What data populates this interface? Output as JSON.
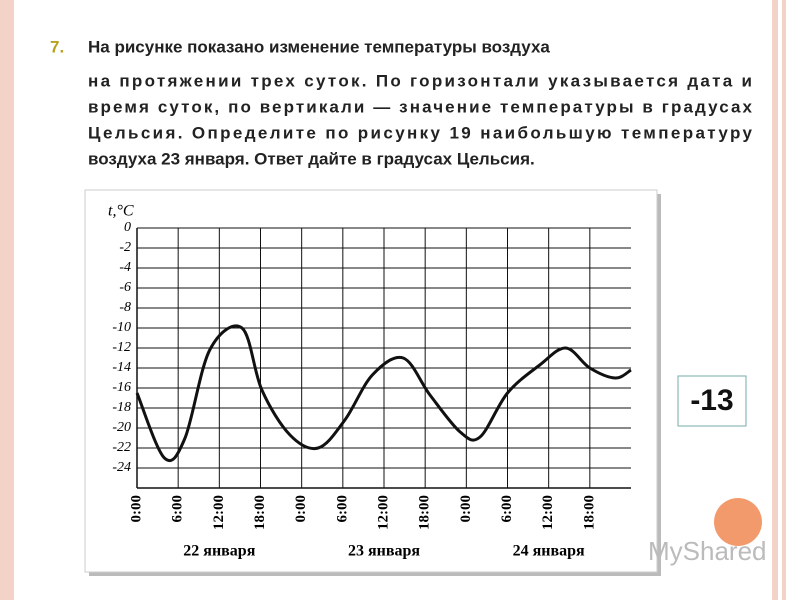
{
  "question": {
    "number": "7.",
    "lines": [
      "На рисунке показано изменение температуры воздуха",
      "на протяжении трех суток. По горизонтали  указывается дата и",
      "время суток, по вертикали — значение  температуры в градусах",
      "Цельсия. Определите по рисунку 19 наибольшую температуру",
      "воздуха 23 января. Ответ дайте в градусах Цельсия."
    ]
  },
  "answer": "-13",
  "watermark": "MyShared",
  "chart_data": {
    "type": "line",
    "y_label": "t,°C",
    "x": [
      0,
      4,
      7,
      10.6,
      15.3,
      18.2,
      22.3,
      26.4,
      30.3,
      34.3,
      38.8,
      42.7,
      47.1,
      50,
      54,
      58.7,
      62.5,
      66,
      69.7,
      72
    ],
    "values": [
      -16.5,
      -23,
      -21,
      -12.2,
      -10,
      -16.2,
      -20.7,
      -22,
      -19.2,
      -14.7,
      -13,
      -16.7,
      -20.4,
      -20.9,
      -16.5,
      -13.7,
      -12,
      -14,
      -15,
      -14.2
    ],
    "color": "#111111",
    "xlim": [
      0,
      72
    ],
    "xticks": [
      {
        "value": 0,
        "label": "0:00"
      },
      {
        "value": 6,
        "label": "6:00"
      },
      {
        "value": 12,
        "label": "12:00"
      },
      {
        "value": 18,
        "label": "18:00"
      },
      {
        "value": 24,
        "label": "0:00"
      },
      {
        "value": 30,
        "label": "6:00"
      },
      {
        "value": 36,
        "label": "12:00"
      },
      {
        "value": 42,
        "label": "18:00"
      },
      {
        "value": 48,
        "label": "0:00"
      },
      {
        "value": 54,
        "label": "6:00"
      },
      {
        "value": 60,
        "label": "12:00"
      },
      {
        "value": 66,
        "label": "18:00"
      }
    ],
    "x_group_labels": [
      "22 января",
      "23 января",
      "24 января"
    ],
    "ylim": [
      -26,
      0
    ],
    "yticks": [
      0,
      -2,
      -4,
      -6,
      -8,
      -10,
      -12,
      -14,
      -16,
      -18,
      -20,
      -22,
      -24
    ],
    "grid": true
  }
}
